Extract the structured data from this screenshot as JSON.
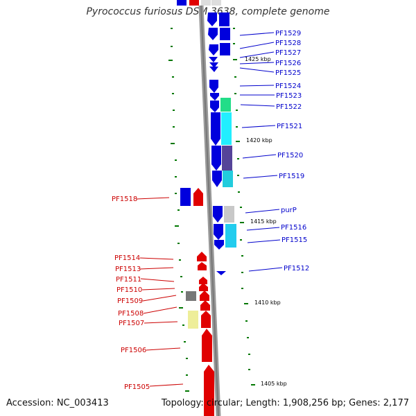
{
  "title": "Pyrococcus furiosus DSM 3638, complete genome",
  "footer": {
    "accession": "Accession: NC_003413",
    "topology": "Topology: circular; Length: 1,908,256 bp; Genes: 2,177"
  },
  "scale_labels": [
    "1425 kbp",
    "1420 kbp",
    "1415 kbp",
    "1410 kbp",
    "1405 kbp"
  ],
  "genes_right": [
    "PF1529",
    "PF1528",
    "PF1527",
    "PF1526",
    "PF1525",
    "PF1524",
    "PF1523",
    "PF1522",
    "PF1521",
    "PF1520",
    "PF1519",
    "purP",
    "PF1516",
    "PF1515",
    "PF1512"
  ],
  "genes_left": [
    "PF1518",
    "PF1514",
    "PF1513",
    "PF1511",
    "PF1510",
    "PF1509",
    "PF1508",
    "PF1507",
    "PF1506",
    "PF1505"
  ],
  "colors": {
    "forward_strand": "#e00000",
    "reverse_strand": "#0000dd",
    "backbone": "#888888",
    "tick": "#007700",
    "cog_green": "#22dd88",
    "cog_cyan": "#22eeff",
    "cog_purple": "#554499",
    "cog_teal": "#22ccdd",
    "cog_gray": "#c8c8c8",
    "cog_dark_gray": "#777777",
    "cog_yellow": "#eeee99"
  }
}
